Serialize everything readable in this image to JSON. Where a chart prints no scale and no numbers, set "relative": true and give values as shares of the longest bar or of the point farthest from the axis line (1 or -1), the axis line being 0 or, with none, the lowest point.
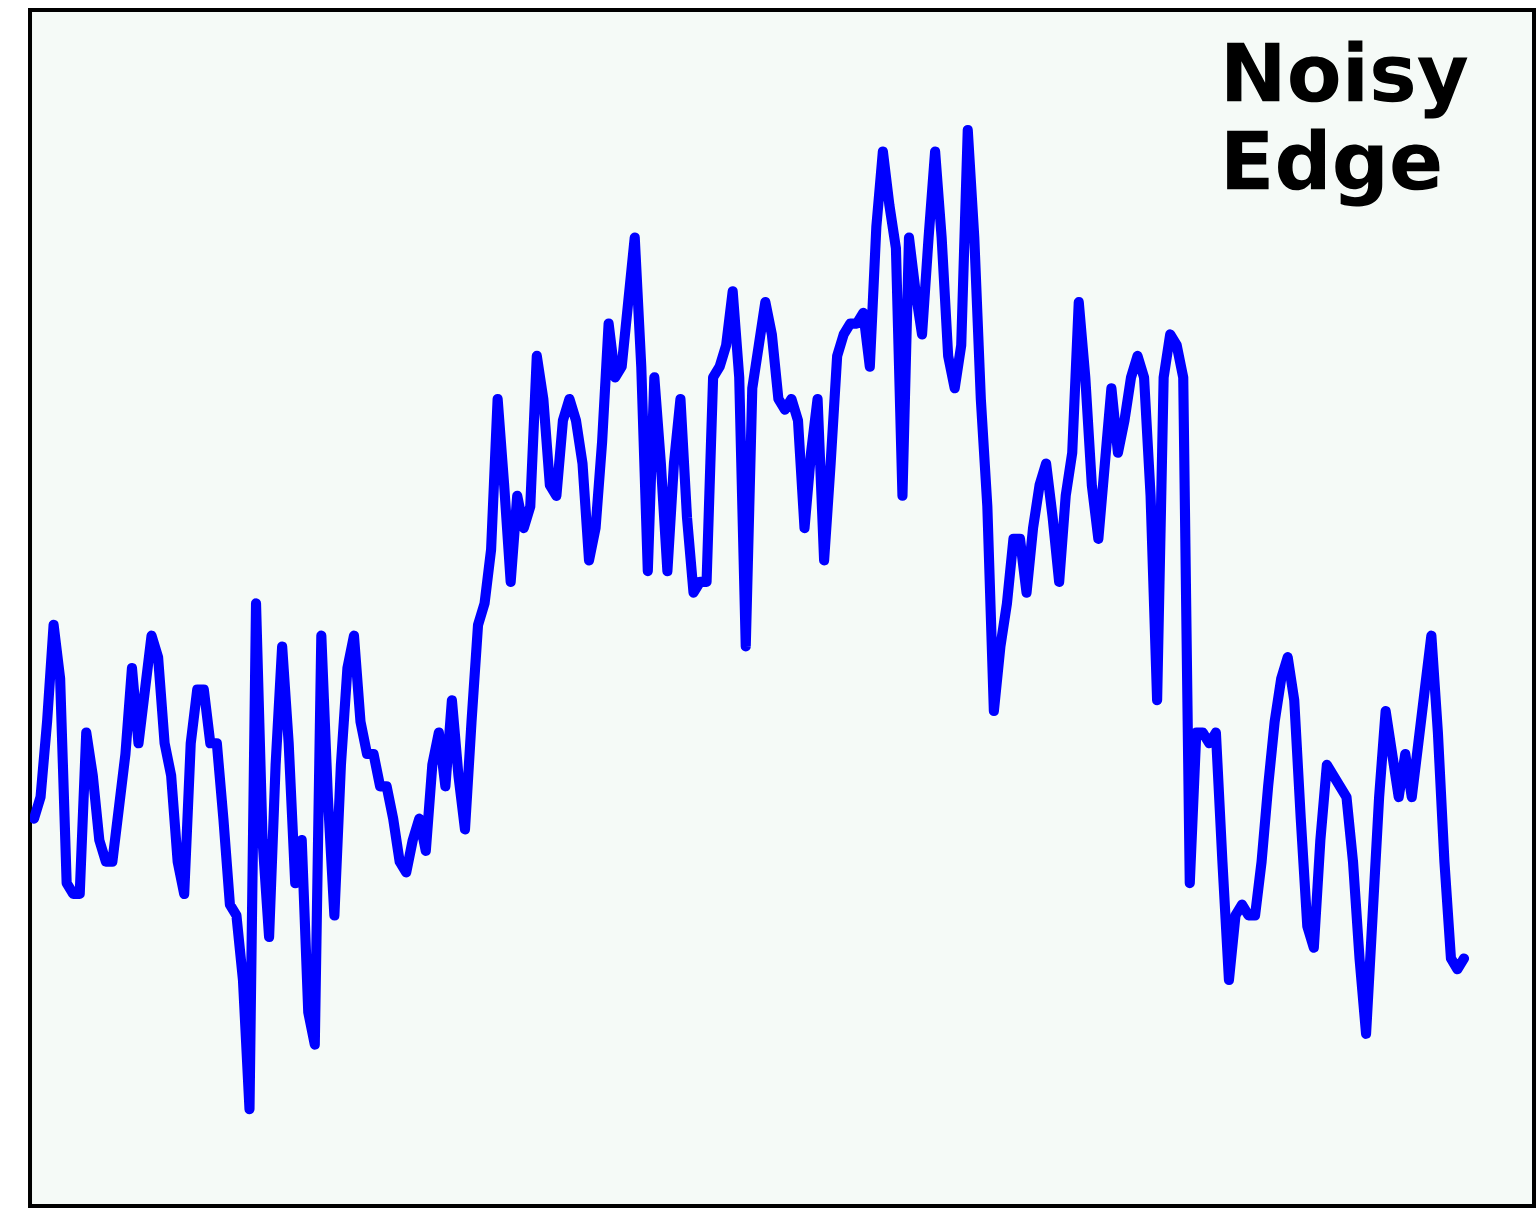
{
  "chart_data": {
    "type": "line",
    "title": "Noisy Edge",
    "relative": true,
    "color": "#0000ff",
    "categories": [
      null,
      null,
      null,
      null,
      null,
      null,
      null,
      null,
      null,
      null,
      null,
      null,
      null,
      null,
      null,
      null,
      null,
      null,
      null,
      null,
      null,
      null,
      null,
      null,
      null,
      null,
      null,
      null,
      null,
      null,
      null,
      null,
      null,
      null,
      null,
      null,
      null,
      null,
      null,
      null,
      null,
      null,
      null,
      null,
      null,
      null,
      null,
      null,
      null,
      null,
      null,
      null,
      null,
      null,
      null,
      null,
      null,
      null,
      null,
      null,
      null,
      null,
      null,
      null,
      null,
      null,
      null,
      null,
      null,
      null,
      null,
      null,
      null,
      null,
      null,
      null,
      null,
      null,
      null,
      null,
      null,
      null,
      null,
      null,
      null,
      null,
      null,
      null,
      null,
      null,
      null,
      null,
      null,
      null,
      null,
      null,
      null,
      null,
      null,
      null,
      null,
      null,
      null,
      null,
      null,
      null,
      null,
      null,
      null,
      null,
      null,
      null,
      null,
      null,
      null,
      null,
      null,
      null,
      null,
      null,
      null,
      null,
      null,
      null,
      null,
      null,
      null,
      null,
      null,
      null,
      null,
      null,
      null,
      null,
      null,
      null,
      null,
      null,
      null,
      null,
      null,
      null,
      null,
      null,
      null,
      null,
      null,
      null,
      null,
      null,
      null,
      null,
      null,
      null,
      null,
      null,
      null,
      null,
      null,
      null,
      null,
      null,
      null,
      null,
      null,
      null,
      null,
      null,
      null,
      null,
      null,
      null,
      null,
      null,
      null,
      null,
      null,
      null,
      null,
      null,
      null,
      null,
      null,
      null,
      null,
      null,
      null,
      null,
      null,
      null,
      null,
      null,
      null,
      null,
      null,
      null,
      null,
      null,
      null,
      null,
      null,
      null,
      null,
      null,
      null,
      null,
      null,
      null,
      null,
      null,
      null,
      null,
      null,
      null,
      null,
      null,
      null,
      null,
      null,
      null
    ],
    "values": [
      0.36,
      0.38,
      0.45,
      0.54,
      0.49,
      0.3,
      0.29,
      0.29,
      0.44,
      0.4,
      0.34,
      0.32,
      0.32,
      0.37,
      0.42,
      0.5,
      0.43,
      0.48,
      0.53,
      0.51,
      0.43,
      0.4,
      0.32,
      0.29,
      0.43,
      0.48,
      0.48,
      0.43,
      0.43,
      0.36,
      0.28,
      0.27,
      0.21,
      0.09,
      0.56,
      0.34,
      0.25,
      0.41,
      0.52,
      0.43,
      0.3,
      0.34,
      0.18,
      0.15,
      0.53,
      0.38,
      0.27,
      0.41,
      0.5,
      0.53,
      0.45,
      0.42,
      0.42,
      0.39,
      0.39,
      0.36,
      0.32,
      0.31,
      0.34,
      0.36,
      0.33,
      0.41,
      0.44,
      0.39,
      0.47,
      0.4,
      0.35,
      0.45,
      0.54,
      0.56,
      0.61,
      0.75,
      0.67,
      0.58,
      0.66,
      0.63,
      0.65,
      0.79,
      0.75,
      0.67,
      0.66,
      0.73,
      0.75,
      0.73,
      0.69,
      0.6,
      0.63,
      0.71,
      0.82,
      0.77,
      0.78,
      0.84,
      0.9,
      0.78,
      0.59,
      0.77,
      0.69,
      0.59,
      0.69,
      0.75,
      0.64,
      0.57,
      0.58,
      0.58,
      0.77,
      0.78,
      0.8,
      0.85,
      0.77,
      0.52,
      0.76,
      0.8,
      0.84,
      0.81,
      0.75,
      0.74,
      0.75,
      0.73,
      0.63,
      0.7,
      0.75,
      0.6,
      0.69,
      0.79,
      0.81,
      0.82,
      0.82,
      0.83,
      0.78,
      0.91,
      0.98,
      0.93,
      0.89,
      0.66,
      0.9,
      0.85,
      0.81,
      0.9,
      0.98,
      0.9,
      0.79,
      0.76,
      0.8,
      1,
      0.9,
      0.75,
      0.65,
      0.46,
      0.52,
      0.56,
      0.62,
      0.62,
      0.57,
      0.63,
      0.67,
      0.69,
      0.64,
      0.58,
      0.66,
      0.7,
      0.84,
      0.77,
      0.67,
      0.62,
      0.69,
      0.76,
      0.7,
      0.73,
      0.77,
      0.79,
      0.77,
      0.66,
      0.47,
      0.77,
      0.81,
      0.8,
      0.77,
      0.3,
      0.44,
      0.44,
      0.43,
      0.44,
      0.32,
      0.21,
      0.27,
      0.28,
      0.27,
      0.27,
      0.32,
      0.39,
      0.45,
      0.49,
      0.51,
      0.47,
      0.36,
      0.26,
      0.24,
      0.34,
      0.41,
      0.4,
      0.39,
      0.38,
      0.32,
      0.23,
      0.16,
      0.27,
      0.38,
      0.46,
      0.42,
      0.38,
      0.42,
      0.38,
      0.43,
      0.48,
      0.53,
      0.44,
      0.32,
      0.23,
      0.22,
      0.23
    ]
  }
}
